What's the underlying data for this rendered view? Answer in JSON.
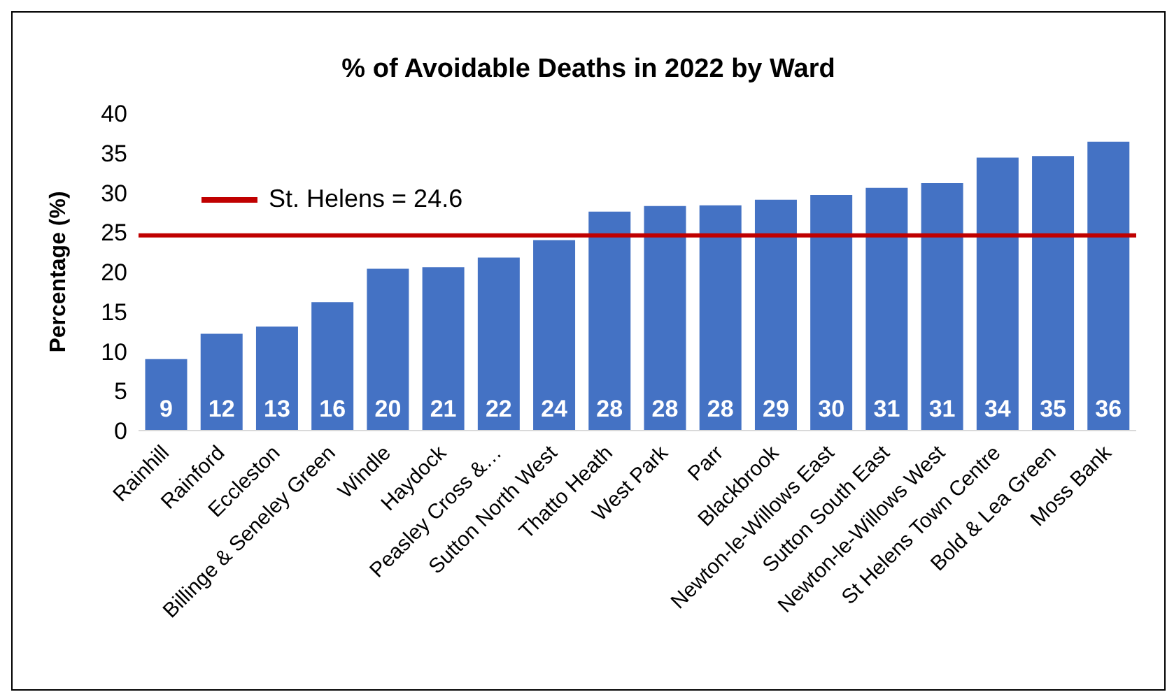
{
  "chart_data": {
    "type": "bar",
    "title": "% of Avoidable Deaths in 2022 by Ward",
    "ylabel": "Percentage (%)",
    "categories": [
      "Rainhill",
      "Rainford",
      "Eccleston",
      "Billinge & Seneley Green",
      "Windle",
      "Haydock",
      "Peasley Cross &…",
      "Sutton North West",
      "Thatto Heath",
      "West Park",
      "Parr",
      "Blackbrook",
      "Newton-le-Willows East",
      "Sutton South East",
      "Newton-le-Willows West",
      "St Helens Town Centre",
      "Bold & Lea Green",
      "Moss Bank"
    ],
    "values": [
      9.0,
      12.2,
      13.1,
      16.2,
      20.4,
      20.6,
      21.8,
      24.0,
      27.6,
      28.3,
      28.4,
      29.1,
      29.7,
      30.6,
      31.2,
      34.4,
      34.6,
      36.4
    ],
    "value_labels": [
      "9",
      "12",
      "13",
      "16",
      "20",
      "21",
      "22",
      "24",
      "28",
      "28",
      "28",
      "29",
      "30",
      "31",
      "31",
      "34",
      "35",
      "36"
    ],
    "color": "#4472c4",
    "ylim": [
      0,
      40
    ],
    "yticks": [
      0,
      5,
      10,
      15,
      20,
      25,
      30,
      35,
      40
    ],
    "grid": false,
    "ref_lines": [
      {
        "axis": "y",
        "value": 24.6,
        "label": "St. Helens = 24.6",
        "color": "#c00000"
      }
    ]
  }
}
